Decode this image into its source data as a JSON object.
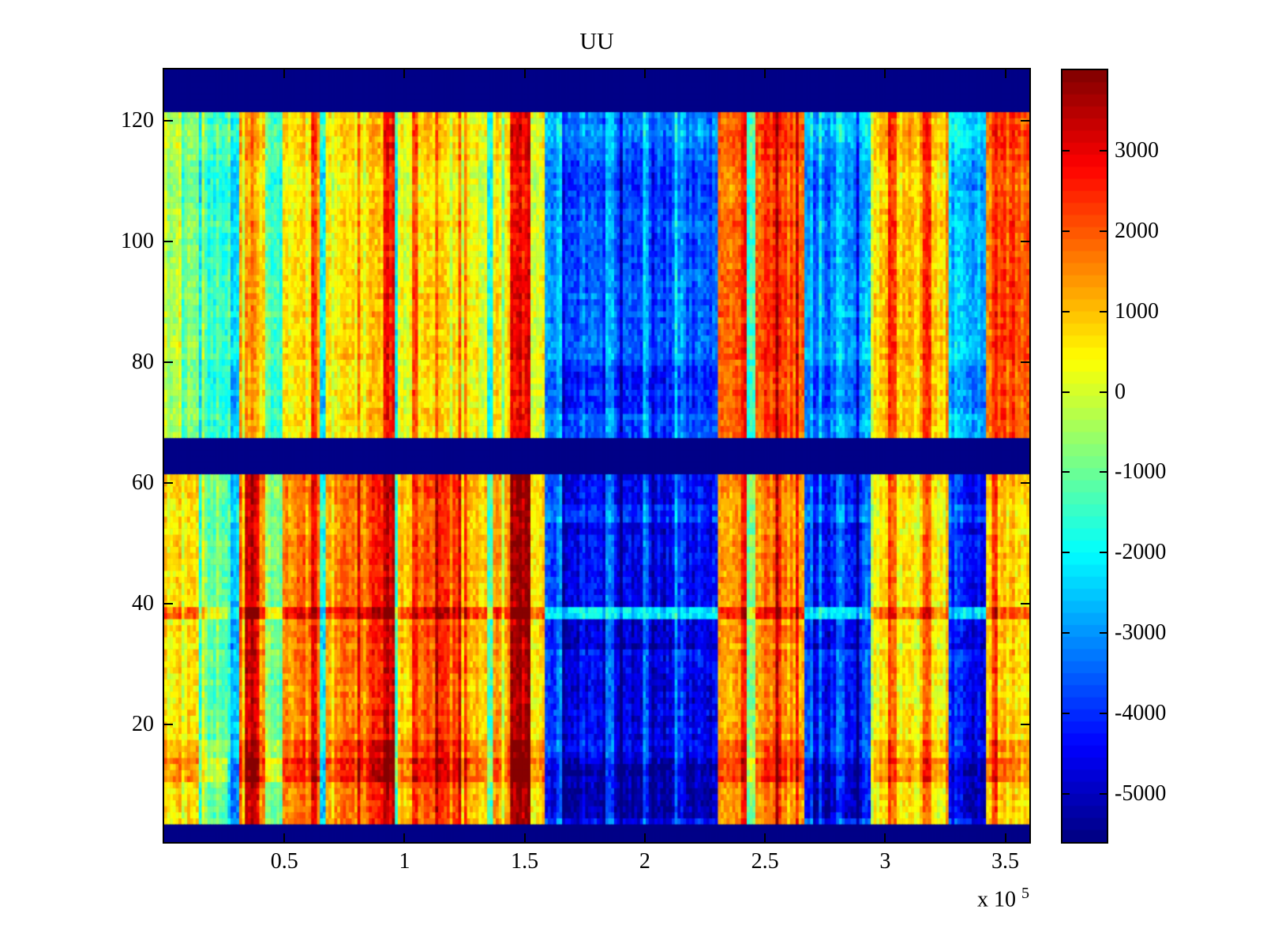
{
  "figure": {
    "background": "#ffffff"
  },
  "chart_data": {
    "type": "heatmap",
    "title": "UU",
    "colormap": "jet",
    "value_range": [
      -5600,
      4000
    ],
    "no_data_value": -5600,
    "x_axis": {
      "range_1e5": [
        0,
        3.6
      ],
      "tick_values_1e5": [
        0.5,
        1,
        1.5,
        2,
        2.5,
        3,
        3.5
      ],
      "tick_labels": [
        "0.5",
        "1",
        "1.5",
        "2",
        "2.5",
        "3",
        "3.5"
      ],
      "exponent_label": "x 10",
      "exponent": "5"
    },
    "y_axis": {
      "range": [
        0.5,
        128.5
      ],
      "rows": 128,
      "tick_values": [
        20,
        40,
        60,
        80,
        100,
        120
      ],
      "tick_labels": [
        "20",
        "40",
        "60",
        "80",
        "100",
        "120"
      ]
    },
    "colorbar": {
      "tick_values": [
        3000,
        2000,
        1000,
        0,
        -1000,
        -2000,
        -3000,
        -4000,
        -5000
      ],
      "tick_labels": [
        "3000",
        "2000",
        "1000",
        "0",
        "-1000",
        "-2000",
        "-3000",
        "-4000",
        "-5000"
      ],
      "levels": 64,
      "min_color": "#000080",
      "max_color": "#800000"
    },
    "blank_row_bands": [
      [
        1,
        3
      ],
      [
        62,
        67
      ],
      [
        122,
        128
      ]
    ],
    "blocks": {
      "upper_rows": [
        68,
        121
      ],
      "lower_rows": [
        4,
        61
      ]
    },
    "segments": [
      [
        0.0,
        0.068,
        -200,
        600
      ],
      [
        0.068,
        0.078,
        2600,
        2700
      ],
      [
        0.078,
        0.14,
        -700,
        650
      ],
      [
        0.14,
        0.27,
        -1400,
        -1000
      ],
      [
        0.27,
        0.31,
        -2300,
        -2700
      ],
      [
        0.31,
        0.335,
        350,
        900
      ],
      [
        0.335,
        0.4,
        1500,
        3250
      ],
      [
        0.4,
        0.42,
        500,
        1100
      ],
      [
        0.42,
        0.49,
        -1300,
        -850
      ],
      [
        0.49,
        0.55,
        450,
        1250
      ],
      [
        0.55,
        0.61,
        800,
        1800
      ],
      [
        0.61,
        0.645,
        2500,
        2900
      ],
      [
        0.645,
        0.668,
        -1800,
        -1700
      ],
      [
        0.668,
        0.71,
        300,
        850
      ],
      [
        0.71,
        0.8,
        700,
        1650
      ],
      [
        0.8,
        0.87,
        950,
        2050
      ],
      [
        0.87,
        0.915,
        1250,
        2700
      ],
      [
        0.915,
        0.955,
        2700,
        3150
      ],
      [
        0.955,
        0.975,
        -1600,
        -1200
      ],
      [
        0.975,
        1.03,
        400,
        1050
      ],
      [
        1.03,
        1.06,
        2300,
        2550
      ],
      [
        1.06,
        1.13,
        800,
        1900
      ],
      [
        1.13,
        1.22,
        650,
        2150
      ],
      [
        1.22,
        1.237,
        1900,
        3100
      ],
      [
        1.237,
        1.34,
        350,
        950
      ],
      [
        1.34,
        1.368,
        -1500,
        -1100
      ],
      [
        1.368,
        1.44,
        550,
        1150
      ],
      [
        1.44,
        1.53,
        2950,
        3650
      ],
      [
        1.53,
        1.58,
        250,
        650
      ],
      [
        1.58,
        1.63,
        -3000,
        -3900
      ],
      [
        1.63,
        1.66,
        -2400,
        -3100
      ],
      [
        1.66,
        1.84,
        -3600,
        -4600
      ],
      [
        1.84,
        1.868,
        -2800,
        -3500
      ],
      [
        1.868,
        1.99,
        -3800,
        -4800
      ],
      [
        1.99,
        2.015,
        -3000,
        -3900
      ],
      [
        2.015,
        2.13,
        -3700,
        -4700
      ],
      [
        2.13,
        2.158,
        -2900,
        -3800
      ],
      [
        2.158,
        2.3,
        -3500,
        -4500
      ],
      [
        2.3,
        2.395,
        1750,
        1100
      ],
      [
        2.395,
        2.428,
        2950,
        2750
      ],
      [
        2.428,
        2.455,
        -1500,
        -950
      ],
      [
        2.455,
        2.545,
        2250,
        1500
      ],
      [
        2.545,
        2.568,
        2850,
        2650
      ],
      [
        2.568,
        2.66,
        2100,
        1350
      ],
      [
        2.66,
        2.7,
        -2600,
        -3400
      ],
      [
        2.7,
        2.798,
        -3250,
        -4350
      ],
      [
        2.798,
        2.828,
        -2400,
        -3350
      ],
      [
        2.828,
        2.908,
        -3150,
        -4450
      ],
      [
        2.908,
        2.94,
        -2200,
        -3200
      ],
      [
        2.94,
        3.018,
        950,
        500
      ],
      [
        3.018,
        3.045,
        2400,
        1850
      ],
      [
        3.045,
        3.158,
        1050,
        450
      ],
      [
        3.158,
        3.188,
        2250,
        1650
      ],
      [
        3.188,
        3.248,
        850,
        350
      ],
      [
        3.248,
        3.268,
        2050,
        1550
      ],
      [
        3.268,
        3.33,
        -2100,
        -3700
      ],
      [
        3.33,
        3.418,
        -2650,
        -4450
      ],
      [
        3.418,
        3.448,
        1500,
        550
      ],
      [
        3.448,
        3.468,
        2650,
        2350
      ],
      [
        3.468,
        3.6,
        2150,
        750
      ]
    ],
    "row_effects": [
      {
        "block": "upper",
        "rows": [
          117,
          121
        ],
        "when": "cold",
        "mode": "add",
        "value": 350
      },
      {
        "block": "upper",
        "rows": [
          106,
          112
        ],
        "when": "any",
        "mode": "add",
        "value": -350
      },
      {
        "block": "upper",
        "rows": [
          72,
          79
        ],
        "when": "cold",
        "mode": "add",
        "value": -500
      },
      {
        "block": "upper",
        "rows": [
          72,
          79
        ],
        "when": "warm",
        "mode": "add",
        "value": -100
      },
      {
        "block": "lower",
        "rows": [
          58,
          61
        ],
        "when": "warm",
        "mode": "add",
        "value": 150
      },
      {
        "block": "lower",
        "rows": [
          54,
          56
        ],
        "when": "cold",
        "mode": "add",
        "value": 650
      },
      {
        "block": "lower",
        "rows": [
          38,
          39
        ],
        "when": "cold",
        "mode": "set",
        "value": -2100
      },
      {
        "block": "lower",
        "rows": [
          38,
          39
        ],
        "when": "warm",
        "mode": "add",
        "value": 1300
      },
      {
        "block": "lower",
        "rows": [
          33,
          36
        ],
        "when": "cold",
        "mode": "add",
        "value": -350
      },
      {
        "block": "lower",
        "rows": [
          15,
          17
        ],
        "when": "warm",
        "mode": "add",
        "value": 450
      },
      {
        "block": "lower",
        "rows": [
          11,
          14
        ],
        "when": "warm",
        "mode": "add",
        "value": 900
      },
      {
        "block": "lower",
        "rows": [
          11,
          14
        ],
        "when": "cold",
        "mode": "add",
        "value": -600
      },
      {
        "block": "lower",
        "rows": [
          5,
          10
        ],
        "when": "cold",
        "mode": "add",
        "value": -700
      }
    ],
    "noise": {
      "cell_amp_warm": 480,
      "cell_amp_cold": 520,
      "col_amp": 400,
      "col_line_chance": 0.08,
      "col_line_amp": 1000,
      "row_amp": 200,
      "columns": 300
    }
  }
}
